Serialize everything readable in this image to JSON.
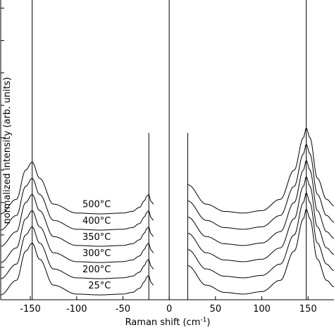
{
  "chart_data": {
    "type": "line",
    "xlabel": "Raman shift (cm",
    "xlabel_sup": "-1",
    "xlabel_end": ")",
    "ylabel": "normalized intensity (arb. units)",
    "xlim": [
      -182,
      178
    ],
    "ylim": [
      0,
      18.5
    ],
    "x_ticks": [
      {
        "value": -150,
        "label": "-150"
      },
      {
        "value": -100,
        "label": "-100"
      },
      {
        "value": -50,
        "label": "-50"
      },
      {
        "value": 0,
        "label": "0"
      },
      {
        "value": 50,
        "label": "50"
      },
      {
        "value": 100,
        "label": "100"
      },
      {
        "value": 150,
        "label": "150"
      }
    ],
    "y_ticks": [
      0,
      2,
      4,
      6,
      8,
      10,
      12,
      14,
      16,
      18
    ],
    "grid": false,
    "reference_lines": [
      {
        "x": -148,
        "y_top": 18.5
      },
      {
        "x": -22,
        "y_top": 10.3
      },
      {
        "x": 0,
        "y_top": 18.5
      },
      {
        "x": 20,
        "y_top": 10.3
      },
      {
        "x": 148,
        "y_top": 18.5
      }
    ],
    "series": [
      {
        "label": "25°C",
        "offset": 0.0,
        "stokes": [
          [
            20,
            2.1
          ],
          [
            40,
            0.9
          ],
          [
            60,
            0.45
          ],
          [
            80,
            0.35
          ],
          [
            100,
            0.5
          ],
          [
            120,
            1.2
          ],
          [
            135,
            3.0
          ],
          [
            145,
            5.0
          ],
          [
            148,
            5.6
          ],
          [
            152,
            5.0
          ],
          [
            160,
            2.5
          ],
          [
            170,
            1.2
          ],
          [
            178,
            0.8
          ]
        ],
        "anti_stokes": [
          [
            -182,
            0.3
          ],
          [
            -165,
            1.2
          ],
          [
            -155,
            3.0
          ],
          [
            -148,
            3.5
          ],
          [
            -140,
            2.5
          ],
          [
            -125,
            0.9
          ],
          [
            -100,
            0.35
          ],
          [
            -75,
            0.3
          ],
          [
            -50,
            0.35
          ],
          [
            -40,
            0.45
          ],
          [
            -32,
            0.7
          ],
          [
            -27,
            1.1
          ],
          [
            -24,
            1.4
          ],
          [
            -22,
            1.5
          ],
          [
            -20,
            1.1
          ],
          [
            -17,
            0.9
          ]
        ]
      },
      {
        "label": "200°C",
        "offset": 1.0,
        "stokes": [
          [
            20,
            2.1
          ],
          [
            40,
            0.9
          ],
          [
            60,
            0.45
          ],
          [
            80,
            0.35
          ],
          [
            100,
            0.5
          ],
          [
            120,
            1.2
          ],
          [
            135,
            3.0
          ],
          [
            145,
            5.0
          ],
          [
            148,
            5.6
          ],
          [
            152,
            5.0
          ],
          [
            160,
            2.5
          ],
          [
            170,
            1.2
          ],
          [
            178,
            0.8
          ]
        ],
        "anti_stokes": [
          [
            -182,
            0.3
          ],
          [
            -165,
            1.2
          ],
          [
            -155,
            3.0
          ],
          [
            -148,
            3.5
          ],
          [
            -140,
            2.5
          ],
          [
            -125,
            0.9
          ],
          [
            -100,
            0.35
          ],
          [
            -75,
            0.3
          ],
          [
            -50,
            0.35
          ],
          [
            -40,
            0.45
          ],
          [
            -32,
            0.7
          ],
          [
            -27,
            1.1
          ],
          [
            -24,
            1.4
          ],
          [
            -22,
            1.5
          ],
          [
            -20,
            1.1
          ],
          [
            -17,
            0.9
          ]
        ]
      },
      {
        "label": "300°C",
        "offset": 2.0,
        "stokes": [
          [
            20,
            2.1
          ],
          [
            40,
            0.9
          ],
          [
            60,
            0.45
          ],
          [
            80,
            0.35
          ],
          [
            100,
            0.5
          ],
          [
            120,
            1.2
          ],
          [
            135,
            3.0
          ],
          [
            145,
            5.0
          ],
          [
            148,
            5.6
          ],
          [
            152,
            5.0
          ],
          [
            160,
            2.5
          ],
          [
            170,
            1.2
          ],
          [
            178,
            0.8
          ]
        ],
        "anti_stokes": [
          [
            -182,
            0.3
          ],
          [
            -165,
            1.2
          ],
          [
            -155,
            3.0
          ],
          [
            -148,
            3.5
          ],
          [
            -140,
            2.5
          ],
          [
            -125,
            0.9
          ],
          [
            -100,
            0.35
          ],
          [
            -75,
            0.3
          ],
          [
            -50,
            0.35
          ],
          [
            -40,
            0.45
          ],
          [
            -32,
            0.7
          ],
          [
            -27,
            1.1
          ],
          [
            -24,
            1.4
          ],
          [
            -22,
            1.5
          ],
          [
            -20,
            1.1
          ],
          [
            -17,
            0.9
          ]
        ]
      },
      {
        "label": "350°C",
        "offset": 3.0,
        "stokes": [
          [
            20,
            2.1
          ],
          [
            40,
            0.9
          ],
          [
            60,
            0.45
          ],
          [
            80,
            0.35
          ],
          [
            100,
            0.5
          ],
          [
            120,
            1.2
          ],
          [
            135,
            3.0
          ],
          [
            145,
            5.0
          ],
          [
            148,
            5.6
          ],
          [
            152,
            5.0
          ],
          [
            160,
            2.5
          ],
          [
            170,
            1.2
          ],
          [
            178,
            0.8
          ]
        ],
        "anti_stokes": [
          [
            -182,
            0.3
          ],
          [
            -165,
            1.2
          ],
          [
            -155,
            3.0
          ],
          [
            -148,
            3.5
          ],
          [
            -140,
            2.5
          ],
          [
            -125,
            0.9
          ],
          [
            -100,
            0.35
          ],
          [
            -75,
            0.3
          ],
          [
            -50,
            0.35
          ],
          [
            -40,
            0.45
          ],
          [
            -32,
            0.7
          ],
          [
            -27,
            1.1
          ],
          [
            -24,
            1.4
          ],
          [
            -22,
            1.5
          ],
          [
            -20,
            1.1
          ],
          [
            -17,
            0.9
          ]
        ]
      },
      {
        "label": "400°C",
        "offset": 4.0,
        "stokes": [
          [
            20,
            2.1
          ],
          [
            40,
            0.9
          ],
          [
            60,
            0.45
          ],
          [
            80,
            0.35
          ],
          [
            100,
            0.5
          ],
          [
            120,
            1.2
          ],
          [
            135,
            3.0
          ],
          [
            145,
            5.0
          ],
          [
            148,
            5.6
          ],
          [
            152,
            5.0
          ],
          [
            160,
            2.5
          ],
          [
            170,
            1.2
          ],
          [
            178,
            0.8
          ]
        ],
        "anti_stokes": [
          [
            -182,
            0.3
          ],
          [
            -165,
            1.2
          ],
          [
            -155,
            3.0
          ],
          [
            -148,
            3.5
          ],
          [
            -140,
            2.5
          ],
          [
            -125,
            0.9
          ],
          [
            -100,
            0.35
          ],
          [
            -75,
            0.3
          ],
          [
            -50,
            0.35
          ],
          [
            -40,
            0.45
          ],
          [
            -32,
            0.7
          ],
          [
            -27,
            1.1
          ],
          [
            -24,
            1.4
          ],
          [
            -22,
            1.5
          ],
          [
            -20,
            1.1
          ],
          [
            -17,
            0.9
          ]
        ]
      },
      {
        "label": "500°C",
        "offset": 5.0,
        "stokes": [
          [
            20,
            2.1
          ],
          [
            40,
            0.9
          ],
          [
            60,
            0.45
          ],
          [
            80,
            0.35
          ],
          [
            100,
            0.5
          ],
          [
            120,
            1.2
          ],
          [
            135,
            3.0
          ],
          [
            145,
            5.0
          ],
          [
            148,
            5.6
          ],
          [
            152,
            5.0
          ],
          [
            160,
            2.5
          ],
          [
            170,
            1.2
          ],
          [
            178,
            0.8
          ]
        ],
        "anti_stokes": [
          [
            -182,
            0.3
          ],
          [
            -165,
            1.2
          ],
          [
            -155,
            3.0
          ],
          [
            -148,
            3.5
          ],
          [
            -140,
            2.5
          ],
          [
            -125,
            0.9
          ],
          [
            -100,
            0.35
          ],
          [
            -75,
            0.3
          ],
          [
            -50,
            0.35
          ],
          [
            -40,
            0.45
          ],
          [
            -32,
            0.7
          ],
          [
            -27,
            1.1
          ],
          [
            -24,
            1.4
          ],
          [
            -22,
            1.5
          ],
          [
            -20,
            1.1
          ],
          [
            -17,
            0.9
          ]
        ]
      }
    ]
  }
}
